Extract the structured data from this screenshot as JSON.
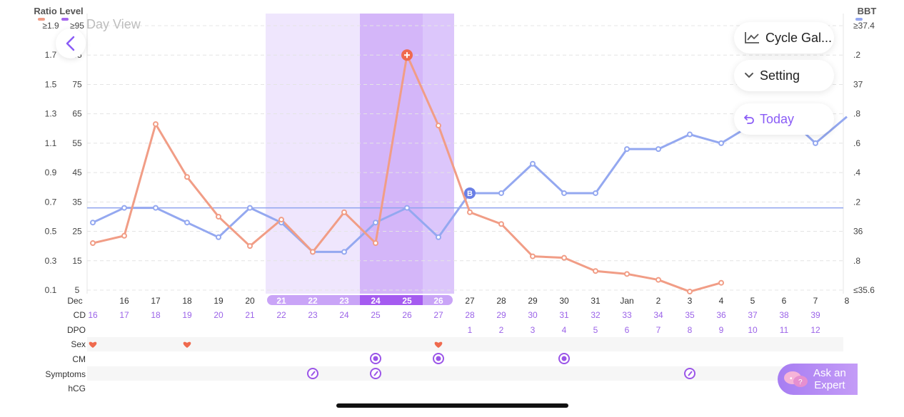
{
  "header": {
    "left_axis_title": "Ratio Level",
    "right_axis_title": "BBT",
    "day_view_label": "Day View"
  },
  "buttons": {
    "cycle_gallery": "Cycle Gal...",
    "setting": "Setting",
    "today": "Today",
    "ask_expert_line1": "Ask an",
    "ask_expert_line2": "Expert"
  },
  "rows": {
    "cd_label": "CD",
    "dpo_label": "DPO",
    "sex_label": "Sex",
    "cm_label": "CM",
    "symptoms_label": "Symptoms",
    "hcg_label": "hCG"
  },
  "colors": {
    "ratio_line": "#f19d86",
    "bbt_line": "#94a8f0",
    "coverline": "#8fa3ee",
    "fertile_window": "#efe6fd",
    "fertile_peak": "#d4b6f9",
    "purple_text": "#9b63e8",
    "heart": "#ef6a4e",
    "peak_marker": "#ef6a4e",
    "bbt_marker": "#6a7fe5"
  },
  "chart_data": {
    "type": "line",
    "x": [
      "Dec",
      "16",
      "17",
      "18",
      "19",
      "20",
      "21",
      "22",
      "23",
      "24",
      "25",
      "26",
      "27",
      "28",
      "29",
      "30",
      "31",
      "Jan",
      "2",
      "3",
      "4",
      "5",
      "6",
      "7",
      "8"
    ],
    "cd": [
      "16",
      "17",
      "18",
      "19",
      "20",
      "21",
      "22",
      "23",
      "24",
      "25",
      "26",
      "27",
      "28",
      "29",
      "30",
      "31",
      "32",
      "33",
      "34",
      "35",
      "36",
      "37",
      "38",
      "39",
      ""
    ],
    "dpo": [
      "",
      "",
      "",
      "",
      "",
      "",
      "",
      "",
      "",
      "",
      "",
      "",
      "1",
      "2",
      "3",
      "4",
      "5",
      "6",
      "7",
      "8",
      "9",
      "10",
      "11",
      "12",
      ""
    ],
    "left_ticks_ratio": [
      "≥1.9",
      "1.7",
      "1.5",
      "1.3",
      "1.1",
      "0.9",
      "0.7",
      "0.5",
      "0.3",
      "0.1"
    ],
    "left_ticks_level": [
      "≥95",
      "85",
      "75",
      "65",
      "55",
      "45",
      "35",
      "25",
      "15",
      "5"
    ],
    "right_ticks": [
      "≥37.4",
      ".2",
      "37",
      ".8",
      ".6",
      ".4",
      ".2",
      "36",
      ".8",
      "≤35.6"
    ],
    "fertile_window_days": [
      "21",
      "22",
      "23",
      "24",
      "25",
      "26"
    ],
    "peak_days": [
      "24",
      "25"
    ],
    "series": [
      {
        "key": "ratio",
        "values": [
          0.42,
          0.47,
          1.23,
          0.87,
          0.6,
          0.4,
          0.58,
          0.36,
          0.63,
          0.42,
          1.7,
          1.22,
          0.63,
          0.55,
          0.33,
          0.32,
          0.23,
          0.21,
          0.17,
          0.09,
          0.15,
          null,
          null,
          null,
          null
        ]
      },
      {
        "key": "bbt",
        "values": [
          36.06,
          36.16,
          36.16,
          36.06,
          35.96,
          36.16,
          36.06,
          35.86,
          35.86,
          36.06,
          36.16,
          35.96,
          36.26,
          36.26,
          36.46,
          36.26,
          36.26,
          36.56,
          36.56,
          36.66,
          36.6,
          36.73,
          36.8,
          36.6,
          36.78
        ]
      }
    ],
    "coverline_bbt": 36.16,
    "bbt_marker_label": "B",
    "bbt_marker_day": "27",
    "peak_marker_day": "25",
    "sex_days": [
      "Dec",
      "18",
      "26"
    ],
    "cm_days": [
      "24",
      "26",
      "30"
    ],
    "symptom_days": [
      "22",
      "24",
      "3"
    ],
    "ylim_ratio": [
      0.1,
      1.9
    ],
    "ylim_bbt": [
      35.6,
      37.4
    ]
  }
}
